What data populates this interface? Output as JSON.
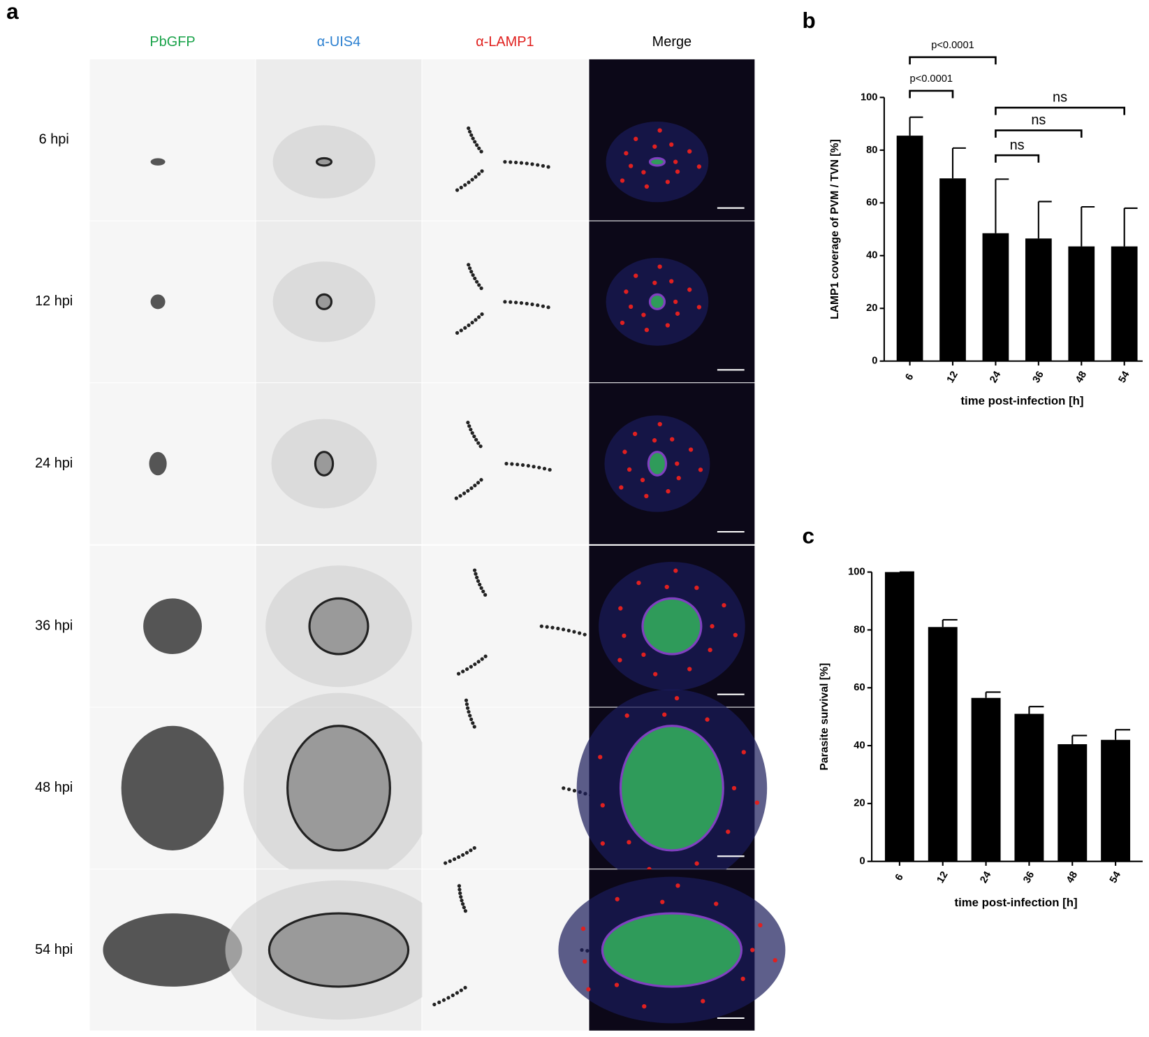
{
  "panel_a": {
    "label": "a",
    "columns": [
      "PbGFP",
      "α-UIS4",
      "α-LAMP1",
      "Merge"
    ],
    "rows": [
      "6 hpi",
      "12 hpi",
      "24 hpi",
      "36 hpi",
      "48 hpi",
      "54 hpi"
    ]
  },
  "chart_data": [
    {
      "type": "bar",
      "label": "b",
      "ylabel": "LAMP1 coverage of PVM / TVN [%]",
      "xlabel": "time post-infection [h]",
      "categories": [
        "6",
        "12",
        "24",
        "36",
        "48",
        "54"
      ],
      "values": [
        85.5,
        69.3,
        48.5,
        46.5,
        43.5,
        43.5
      ],
      "errors": [
        7,
        11.5,
        20.5,
        14,
        15,
        14.5
      ],
      "color": "#000000",
      "ylim": [
        0,
        100
      ],
      "yticks": [
        0,
        20,
        40,
        60,
        80,
        100
      ],
      "annotations": [
        "p<0.0001",
        "p<0.0001",
        "ns",
        "ns",
        "ns"
      ]
    },
    {
      "type": "bar",
      "label": "c",
      "ylabel": "Parasite survival [%]",
      "xlabel": "time post-infection [h]",
      "categories": [
        "6",
        "12",
        "24",
        "36",
        "48",
        "54"
      ],
      "values": [
        100,
        81,
        56.5,
        51,
        40.5,
        42
      ],
      "errors": [
        0,
        2.5,
        2,
        2.5,
        3,
        3.5
      ],
      "color": "#000000",
      "ylim": [
        0,
        100
      ],
      "yticks": [
        0,
        20,
        40,
        60,
        80,
        100
      ]
    }
  ]
}
